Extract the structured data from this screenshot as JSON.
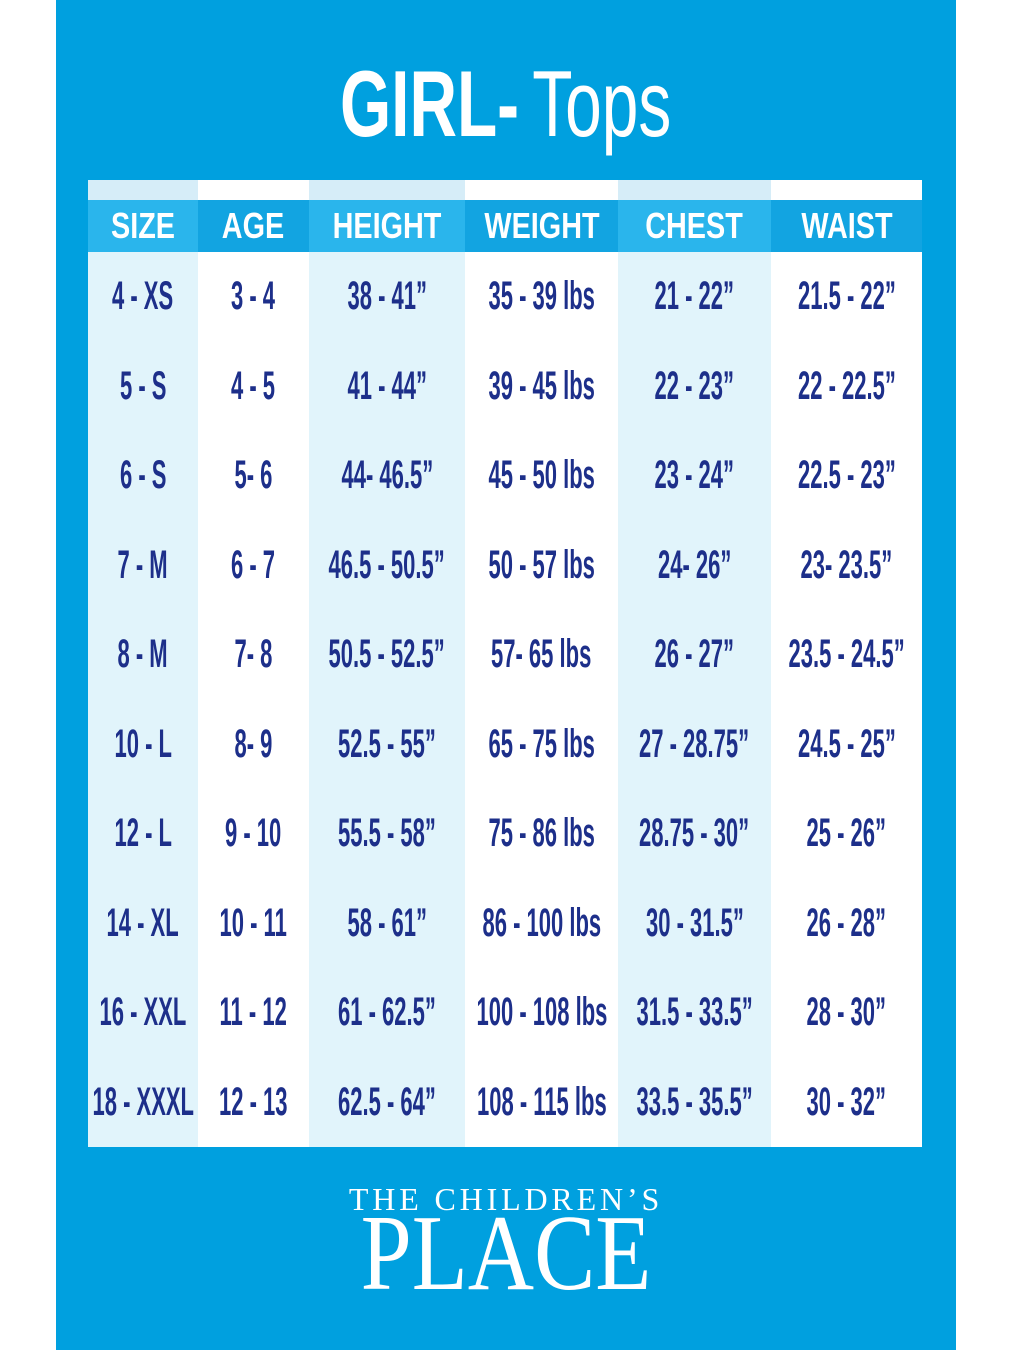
{
  "title": {
    "part_bold": "GIRL-",
    "part_light": "Tops"
  },
  "chart_data": {
    "type": "table",
    "title": "GIRL- Tops",
    "columns": [
      "SIZE",
      "AGE",
      "HEIGHT",
      "WEIGHT",
      "CHEST",
      "WAIST"
    ],
    "rows": [
      [
        "4 - XS",
        "3 - 4",
        "38 - 41”",
        "35 - 39 lbs",
        "21 - 22”",
        "21.5 - 22”"
      ],
      [
        "5 - S",
        "4 - 5",
        "41 - 44”",
        "39 - 45 lbs",
        "22 - 23”",
        "22 - 22.5”"
      ],
      [
        "6 - S",
        "5- 6",
        "44- 46.5”",
        "45 - 50 lbs",
        "23 - 24”",
        "22.5 - 23”"
      ],
      [
        "7 - M",
        "6 - 7",
        "46.5 - 50.5”",
        "50 - 57 lbs",
        "24- 26”",
        "23- 23.5”"
      ],
      [
        "8 - M",
        "7- 8",
        "50.5 - 52.5”",
        "57- 65 lbs",
        "26 - 27”",
        "23.5 - 24.5”"
      ],
      [
        "10 - L",
        "8- 9",
        "52.5 - 55”",
        "65 - 75 lbs",
        "27 - 28.75”",
        "24.5 - 25”"
      ],
      [
        "12 - L",
        "9 - 10",
        "55.5 - 58”",
        "75 - 86 lbs",
        "28.75 - 30”",
        "25 - 26”"
      ],
      [
        "14 - XL",
        "10 - 11",
        "58 - 61”",
        "86 - 100 lbs",
        "30 - 31.5”",
        "26 - 28”"
      ],
      [
        "16 - XXL",
        "11 - 12",
        "61 - 62.5”",
        "100 - 108 lbs",
        "31.5 - 33.5”",
        "28 - 30”"
      ],
      [
        "18 - XXXL",
        "12 - 13",
        "62.5 - 64”",
        "108 - 115 lbs",
        "33.5 - 35.5”",
        "30 - 32”"
      ]
    ]
  },
  "brand": {
    "line1": "THE CHILDREN’S",
    "line2": "PLACE"
  },
  "colors": {
    "background_blue": "#00a0df",
    "header_light_cyan": "#2ab5ec",
    "header_dark_cyan": "#12a4e1",
    "column_stripe_light": "#e1f4fb",
    "top_strip_light": "#d6edf8",
    "text_navy": "#1d2f8a",
    "text_white": "#ffffff"
  }
}
